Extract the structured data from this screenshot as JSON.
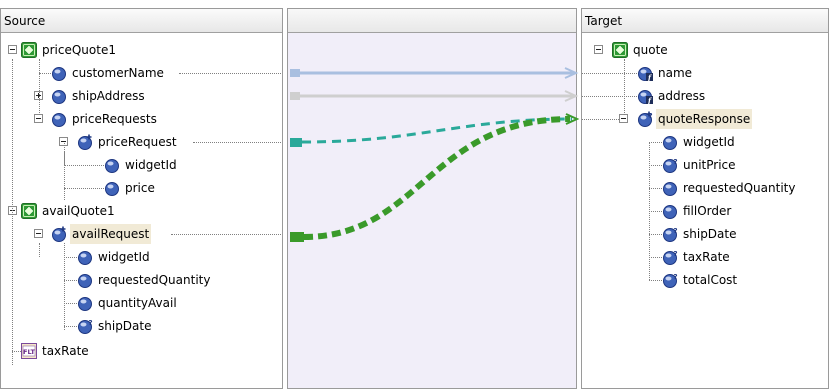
{
  "source": {
    "header": "Source",
    "nodes": [
      {
        "label": "priceQuote1",
        "icon": "green-element-icon",
        "toggle": "minus"
      },
      {
        "label": "customerName",
        "icon": "blue-field-icon"
      },
      {
        "label": "shipAddress",
        "icon": "blue-field-icon",
        "toggle": "plus"
      },
      {
        "label": "priceRequests",
        "icon": "blue-field-icon",
        "toggle": "minus"
      },
      {
        "label": "priceRequest",
        "icon": "blue-plus-field-icon",
        "toggle": "minus"
      },
      {
        "label": "widgetId",
        "icon": "blue-field-icon"
      },
      {
        "label": "price",
        "icon": "blue-field-icon"
      },
      {
        "label": "availQuote1",
        "icon": "green-element-icon",
        "toggle": "minus"
      },
      {
        "label": "availRequest",
        "icon": "blue-plus-field-icon",
        "toggle": "minus",
        "highlight": true
      },
      {
        "label": "widgetId",
        "icon": "blue-field-icon"
      },
      {
        "label": "requestedQuantity",
        "icon": "blue-field-icon"
      },
      {
        "label": "quantityAvail",
        "icon": "blue-field-icon"
      },
      {
        "label": "shipDate",
        "icon": "blue-optional-field-icon"
      },
      {
        "label": "taxRate",
        "icon": "flt-variable-icon"
      }
    ]
  },
  "mapper": {
    "header": ""
  },
  "target": {
    "header": "Target",
    "nodes": [
      {
        "label": "quote",
        "icon": "green-element-icon",
        "toggle": "minus"
      },
      {
        "label": "name",
        "icon": "blue-function-field-icon"
      },
      {
        "label": "address",
        "icon": "blue-function-field-icon"
      },
      {
        "label": "quoteResponse",
        "icon": "blue-plus-optional-field-icon",
        "toggle": "minus",
        "highlight": true
      },
      {
        "label": "widgetId",
        "icon": "blue-field-icon"
      },
      {
        "label": "unitPrice",
        "icon": "blue-optional-field-icon"
      },
      {
        "label": "requestedQuantity",
        "icon": "blue-field-icon"
      },
      {
        "label": "fillOrder",
        "icon": "blue-field-icon"
      },
      {
        "label": "shipDate",
        "icon": "blue-optional-field-icon"
      },
      {
        "label": "taxRate",
        "icon": "blue-optional-field-icon"
      },
      {
        "label": "totalCost",
        "icon": "blue-optional-field-icon"
      }
    ]
  },
  "flt_badge": "FLT",
  "colors": {
    "link_blue": "#a9bfe0",
    "link_gray": "#cfcfcf",
    "link_teal": "#2aa99a",
    "link_green": "#3a9a2a",
    "mapper_bg": "#f1eef9",
    "highlight": "#f1ead6"
  }
}
